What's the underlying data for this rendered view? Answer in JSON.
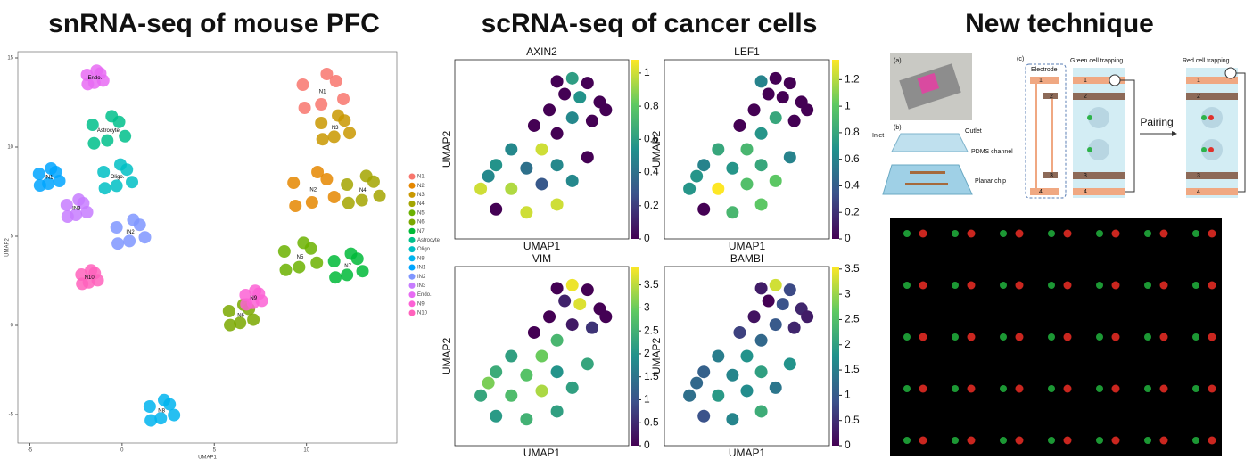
{
  "header": {
    "titles": [
      "snRNA-seq of mouse PFC",
      "scRNA-seq of cancer cells",
      "New technique"
    ]
  },
  "chart_data": [
    {
      "type": "scatter",
      "xlabel": "UMAP1",
      "ylabel": "UMAP2",
      "xlim": [
        -5.65,
        14.9
      ],
      "ylim": [
        -6.6,
        15.35
      ],
      "xticks": [
        -5,
        0,
        5,
        10
      ],
      "yticks": [
        -5,
        0,
        5,
        10,
        15
      ],
      "legend": "right",
      "series": [
        {
          "name": "N1",
          "color": "#f8766d",
          "x": [
            9.8,
            11.6,
            10.8,
            12.0,
            9.9,
            11.1
          ],
          "y": [
            13.5,
            13.7,
            12.4,
            12.7,
            12.2,
            14.1
          ]
        },
        {
          "name": "N2",
          "color": "#e58700",
          "x": [
            9.3,
            11.1,
            10.3,
            11.5,
            9.4,
            10.6
          ],
          "y": [
            8,
            8.2,
            6.9,
            7.2,
            6.7,
            8.6
          ]
        },
        {
          "name": "N3",
          "color": "#c99800",
          "x": [
            10.8,
            12.06,
            11.5,
            12.34,
            10.87,
            11.71
          ],
          "y": [
            11.35,
            11.49,
            10.58,
            10.79,
            10.44,
            11.77
          ]
        },
        {
          "name": "N4",
          "color": "#a3a500",
          "x": [
            12.2,
            13.64,
            13,
            13.96,
            12.28,
            13.24
          ],
          "y": [
            7.9,
            8.06,
            7.02,
            7.26,
            6.86,
            8.38
          ]
        },
        {
          "name": "N5",
          "color": "#6bb100",
          "x": [
            8.8,
            10.24,
            9.6,
            10.56,
            8.88,
            9.84
          ],
          "y": [
            4.15,
            4.31,
            3.27,
            3.51,
            3.11,
            4.63
          ]
        },
        {
          "name": "N6",
          "color": "#7aa800",
          "x": [
            5.8,
            6.88,
            6.4,
            7.12,
            5.86,
            6.58
          ],
          "y": [
            0.8,
            0.92,
            0.14,
            0.32,
            0.02,
            1.16
          ]
        },
        {
          "name": "N7",
          "color": "#00ba38",
          "x": [
            11.5,
            12.76,
            12.2,
            13.04,
            11.57,
            12.41
          ],
          "y": [
            3.6,
            3.74,
            2.83,
            3.04,
            2.69,
            4.02
          ]
        },
        {
          "name": "Astrocyte",
          "color": "#00c08b",
          "x": [
            -1.6,
            -0.16,
            -0.8,
            0.16,
            -1.52,
            -0.56
          ],
          "y": [
            11.25,
            11.41,
            10.37,
            10.61,
            10.21,
            11.73
          ]
        },
        {
          "name": "Oligo.",
          "color": "#00bfc4",
          "x": [
            -1.0,
            0.26,
            -0.3,
            0.54,
            -0.93,
            -0.09
          ],
          "y": [
            8.6,
            8.74,
            7.83,
            8.04,
            7.69,
            9.02
          ]
        },
        {
          "name": "N8",
          "color": "#00b4ef",
          "x": [
            1.5,
            2.58,
            2.1,
            2.82,
            1.56,
            2.28
          ],
          "y": [
            -4.55,
            -4.43,
            -5.21,
            -5.03,
            -5.33,
            -4.19
          ]
        },
        {
          "name": "IN1",
          "color": "#00a5ff",
          "x": [
            -4.5,
            -3.6,
            -4,
            -3.4,
            -4.45,
            -3.85
          ],
          "y": [
            8.5,
            8.6,
            7.95,
            8.1,
            7.85,
            8.8
          ]
        },
        {
          "name": "IN2",
          "color": "#7f96ff",
          "x": [
            -0.3,
            0.96,
            0.4,
            1.24,
            -0.23,
            0.61
          ],
          "y": [
            5.5,
            5.64,
            4.73,
            4.94,
            4.59,
            5.92
          ]
        },
        {
          "name": "IN3",
          "color": "#c77cff",
          "x": [
            -3,
            -2.1,
            -2.5,
            -1.9,
            -2.95,
            -2.35
          ],
          "y": [
            6.75,
            6.85,
            6.2,
            6.35,
            6.1,
            7.05
          ]
        },
        {
          "name": "Endo.",
          "color": "#e76bf3",
          "x": [
            -1.9,
            -1.18,
            -1.5,
            -1.02,
            -1.86,
            -1.38
          ],
          "y": [
            14.05,
            14.13,
            13.61,
            13.73,
            13.53,
            14.29
          ]
        },
        {
          "name": "N9",
          "color": "#fc61d5",
          "x": [
            6.7,
            7.42,
            7.1,
            7.58,
            6.74,
            7.22
          ],
          "y": [
            1.7,
            1.78,
            1.26,
            1.38,
            1.18,
            1.94
          ]
        },
        {
          "name": "N10",
          "color": "#ff62bc",
          "x": [
            -2.2,
            -1.48,
            -1.8,
            -1.32,
            -2.16,
            -1.68
          ],
          "y": [
            2.85,
            2.93,
            2.41,
            2.53,
            2.33,
            3.09
          ]
        }
      ]
    },
    {
      "type": "scatter",
      "title": "AXIN2",
      "xlabel": "UMAP1",
      "ylabel": "UMAP2",
      "xlim": [
        0,
        10
      ],
      "ylim": [
        0,
        10
      ],
      "clim": [
        0,
        1.08
      ],
      "cticks": [
        0,
        0.2,
        0.4,
        0.6,
        0.8,
        1
      ],
      "x": [
        6,
        7,
        8,
        7.5,
        8.8,
        6.5,
        5.5,
        7,
        8.3,
        4.5,
        6,
        9.2,
        3,
        5,
        2,
        4,
        6,
        1,
        3,
        5,
        7,
        2,
        4,
        6,
        1.5,
        8
      ],
      "y": [
        9.3,
        9.5,
        9.2,
        8.3,
        8,
        8.5,
        7.5,
        7,
        6.8,
        6.5,
        6,
        7.5,
        5,
        5,
        4,
        3.8,
        4,
        2.5,
        2.5,
        2.8,
        3,
        1.2,
        1,
        1.5,
        3.3,
        4.5
      ],
      "values": [
        0,
        0.6,
        0,
        0.55,
        0,
        0,
        0,
        0.5,
        0,
        0,
        0,
        0,
        0.5,
        1,
        0.55,
        0.4,
        0.5,
        1,
        0.95,
        0.3,
        0.5,
        0,
        1,
        1,
        0.5,
        0
      ]
    },
    {
      "type": "scatter",
      "title": "LEF1",
      "xlabel": "UMAP1",
      "ylabel": "UMAP2",
      "xlim": [
        0,
        10
      ],
      "ylim": [
        0,
        10
      ],
      "clim": [
        0,
        1.35
      ],
      "cticks": [
        0,
        0.2,
        0.4,
        0.6,
        0.8,
        1,
        1.2
      ],
      "x": [
        6,
        7,
        8,
        7.5,
        8.8,
        6.5,
        5.5,
        7,
        8.3,
        4.5,
        6,
        9.2,
        3,
        5,
        2,
        4,
        6,
        1,
        3,
        5,
        7,
        2,
        4,
        6,
        1.5,
        8
      ],
      "y": [
        9.3,
        9.5,
        9.2,
        8.3,
        8,
        8.5,
        7.5,
        7,
        6.8,
        6.5,
        6,
        7.5,
        5,
        5,
        4,
        3.8,
        4,
        2.5,
        2.5,
        2.8,
        3,
        1.2,
        1,
        1.5,
        3.3,
        4.5
      ],
      "values": [
        0.6,
        0,
        0,
        0,
        0,
        0,
        0,
        0.8,
        0,
        0,
        0.7,
        0,
        0.8,
        0.9,
        0.6,
        0.7,
        0.8,
        0.7,
        1.35,
        0.95,
        1.0,
        0,
        0.9,
        1.0,
        0.7,
        0.6
      ]
    },
    {
      "type": "scatter",
      "title": "VIM",
      "xlabel": "UMAP1",
      "ylabel": "UMAP2",
      "xlim": [
        0,
        10
      ],
      "ylim": [
        0,
        10
      ],
      "clim": [
        0,
        3.9
      ],
      "cticks": [
        0,
        0.5,
        1,
        1.5,
        2,
        2.5,
        3,
        3.5
      ],
      "x": [
        6,
        7,
        8,
        7.5,
        8.8,
        6.5,
        5.5,
        7,
        8.3,
        4.5,
        6,
        9.2,
        3,
        5,
        2,
        4,
        6,
        1,
        3,
        5,
        7,
        2,
        4,
        6,
        1.5,
        8
      ],
      "y": [
        9.3,
        9.5,
        9.2,
        8.3,
        8,
        8.5,
        7.5,
        7,
        6.8,
        6.5,
        6,
        7.5,
        5,
        5,
        4,
        3.8,
        4,
        2.5,
        2.5,
        2.8,
        3,
        1.2,
        1,
        1.5,
        3.3,
        4.5
      ],
      "values": [
        0,
        3.8,
        0,
        3.7,
        0,
        0.4,
        0,
        0.3,
        0.6,
        0,
        2.6,
        0,
        2.2,
        3.0,
        2.4,
        2.8,
        2.0,
        2.3,
        2.7,
        3.4,
        2.2,
        2.1,
        2.5,
        2.2,
        3.1,
        2.3
      ]
    },
    {
      "type": "scatter",
      "title": "BAMBI",
      "xlabel": "UMAP1",
      "ylabel": "UMAP2",
      "xlim": [
        0,
        10
      ],
      "ylim": [
        0,
        10
      ],
      "clim": [
        0,
        3.55
      ],
      "cticks": [
        0,
        0.5,
        1,
        1.5,
        2,
        2.5,
        3,
        3.5
      ],
      "x": [
        6,
        7,
        8,
        7.5,
        8.8,
        6.5,
        5.5,
        7,
        8.3,
        4.5,
        6,
        9.2,
        3,
        5,
        2,
        4,
        6,
        1,
        3,
        5,
        7,
        2,
        4,
        6,
        1.5,
        8
      ],
      "y": [
        9.3,
        9.5,
        9.2,
        8.3,
        8,
        8.5,
        7.5,
        7,
        6.8,
        6.5,
        6,
        7.5,
        5,
        5,
        4,
        3.8,
        4,
        2.5,
        2.5,
        2.8,
        3,
        1.2,
        1,
        1.5,
        3.3,
        4.5
      ],
      "values": [
        0.3,
        3.3,
        0.8,
        0.9,
        0.4,
        0,
        0.2,
        1.0,
        0.4,
        0.7,
        1.2,
        0.3,
        1.5,
        1.8,
        1.1,
        1.6,
        2.0,
        1.3,
        1.9,
        1.7,
        1.4,
        0.9,
        1.6,
        2.2,
        1.2,
        1.8
      ]
    }
  ],
  "diagram": {
    "panel_labels": [
      "(a)",
      "(b)",
      "(c)"
    ],
    "inlet": "Inlet",
    "outlet": "Outlet",
    "pdms": "PDMS channel",
    "chip": "Planar chip",
    "electrode": "Electrode",
    "green": "Green cell trapping",
    "red": "Red cell trapping",
    "pairing": "Pairing",
    "electrode_numbers": [
      "1",
      "2",
      "3",
      "4"
    ]
  }
}
